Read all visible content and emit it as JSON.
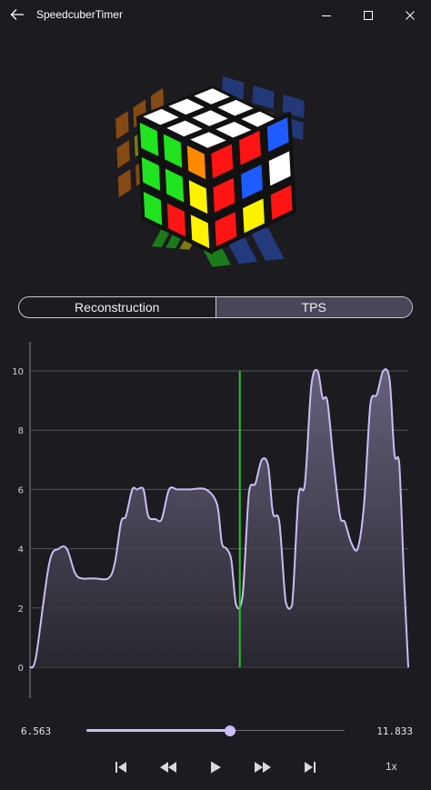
{
  "window": {
    "title": "SpeedcuberTimer",
    "back_icon": "arrow-left-icon",
    "minimize_icon": "minimize-icon",
    "maximize_icon": "maximize-icon",
    "close_icon": "close-icon"
  },
  "cube": {
    "top": [
      "white",
      "white",
      "white",
      "white",
      "white",
      "white",
      "white",
      "white",
      "white"
    ],
    "front": [
      "green",
      "green",
      "orange",
      "green",
      "green",
      "yellow",
      "green",
      "red",
      "yellow"
    ],
    "right": [
      "red",
      "red",
      "blue",
      "red",
      "blue",
      "white",
      "red",
      "yellow",
      "red"
    ],
    "left_shadow": [
      "orange",
      "orange",
      "orange",
      "orange",
      "yellow",
      "orange",
      "orange",
      "orange",
      "orange"
    ],
    "back_shadow": [
      "blue",
      "blue",
      "blue",
      "blue",
      "red",
      "blue"
    ],
    "bottom_shadow": [
      "green",
      "green",
      "yellow",
      "green",
      "blue",
      "blue"
    ]
  },
  "toggle": {
    "options": [
      "Reconstruction",
      "TPS"
    ],
    "selected": "TPS"
  },
  "chart_data": {
    "type": "area",
    "title": "",
    "xlabel": "",
    "ylabel": "",
    "ylim": [
      0,
      10
    ],
    "yticks": [
      "0",
      "2",
      "4",
      "6",
      "8",
      "10"
    ],
    "grid": true,
    "x_range": [
      0,
      11.833
    ],
    "cursor_x": 6.563,
    "series": [
      {
        "x": [
          0,
          0.18,
          0.6,
          0.9,
          1.15,
          1.4,
          1.6,
          2.0,
          2.45,
          2.65,
          2.85,
          3.0,
          3.2,
          3.35,
          3.55,
          3.7,
          3.92,
          4.12,
          4.35,
          4.6,
          4.78,
          5.0,
          5.5,
          5.85,
          6.0,
          6.15,
          6.3,
          6.45,
          6.65,
          6.85,
          7.05,
          7.25,
          7.45,
          7.6,
          7.8,
          8.0,
          8.2,
          8.4,
          8.6,
          8.8,
          9.0,
          9.15,
          9.3,
          9.5,
          9.7,
          9.85,
          10.05,
          10.25,
          10.45,
          10.65,
          10.85,
          11.05,
          11.25,
          11.4,
          11.55,
          11.7,
          11.833
        ],
        "values": [
          0,
          0.3,
          3.5,
          4,
          4,
          3.2,
          3,
          3,
          3,
          3.5,
          4.9,
          5.1,
          6,
          6,
          6,
          5.1,
          5,
          5,
          6,
          6,
          6,
          6,
          6,
          5.5,
          4.2,
          4,
          3.6,
          2.1,
          2.4,
          5.9,
          6.2,
          7,
          6.8,
          5.2,
          4.9,
          2.2,
          2.1,
          5.8,
          6.2,
          9.5,
          10,
          9.1,
          9,
          6.9,
          5.1,
          4.9,
          4.2,
          4,
          5.5,
          8.9,
          9.2,
          10,
          9.7,
          7.2,
          6.9,
          3.0,
          0
        ]
      }
    ],
    "colors": {
      "line": "#cbbdf5",
      "cursor": "#22c62a",
      "grid": "#55535c",
      "axis": "#8d8a94"
    }
  },
  "playback": {
    "start_time": "6.563",
    "end_time": "11.833",
    "progress": 0.555,
    "speed_label": "1x",
    "icons": [
      "skip-to-start-icon",
      "rewind-icon",
      "play-icon",
      "fast-forward-icon",
      "skip-to-end-icon"
    ]
  }
}
